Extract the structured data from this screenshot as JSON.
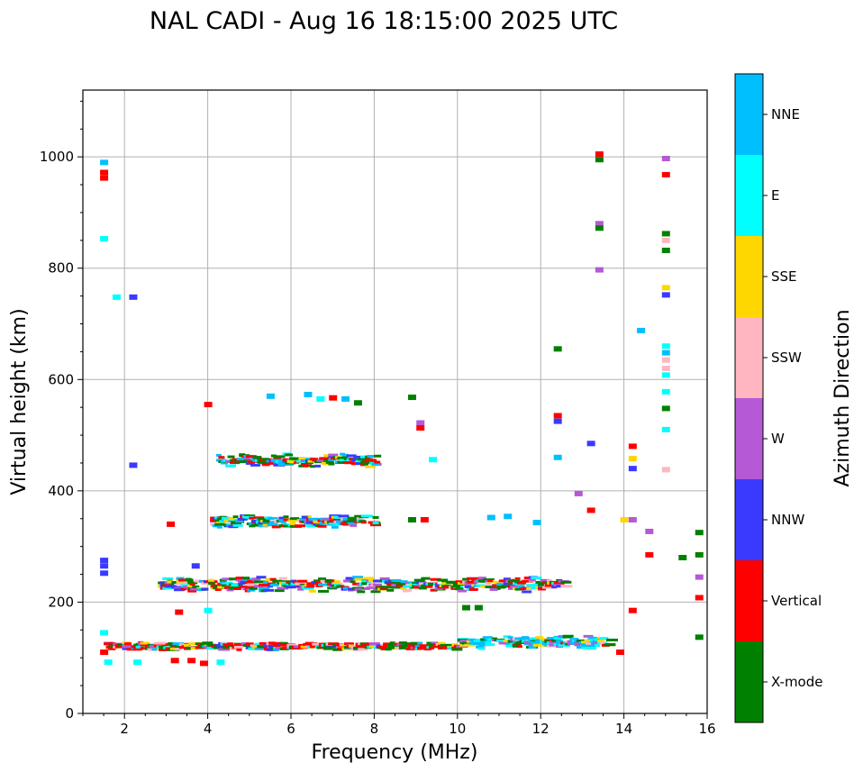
{
  "chart_data": {
    "type": "scatter",
    "title": "NAL CADI - Aug 16 18:15:00 2025 UTC",
    "xlabel": "Frequency (MHz)",
    "ylabel": "Virtual height (km)",
    "xlim": [
      1,
      16
    ],
    "ylim": [
      0,
      1120
    ],
    "xticks": [
      2,
      4,
      6,
      8,
      10,
      12,
      14,
      16
    ],
    "yticks": [
      0,
      200,
      400,
      600,
      800,
      1000
    ],
    "grid": true,
    "colorbar": {
      "label": "Azimuth Direction",
      "categories": [
        {
          "name": "X-mode",
          "color": "#008000"
        },
        {
          "name": "Vertical",
          "color": "#ff0000"
        },
        {
          "name": "NNW",
          "color": "#3a3aff"
        },
        {
          "name": "W",
          "color": "#b659d6"
        },
        {
          "name": "SSW",
          "color": "#ffb6c1"
        },
        {
          "name": "SSE",
          "color": "#ffd700"
        },
        {
          "name": "E",
          "color": "#00ffff"
        },
        {
          "name": "NNE",
          "color": "#00bfff"
        }
      ]
    },
    "echo_layers": [
      {
        "name": "E-layer trace",
        "x": [
          1.5,
          10.0
        ],
        "y": [
          118,
          122
        ]
      },
      {
        "name": "E-layer extension",
        "x": [
          10.0,
          13.6
        ],
        "y": [
          120,
          134
        ]
      },
      {
        "name": "F-layer trace",
        "x": [
          2.8,
          12.5
        ],
        "y": [
          222,
          240
        ]
      },
      {
        "name": "F-layer second hop",
        "x": [
          4.0,
          8.0
        ],
        "y": [
          337,
          352
        ]
      },
      {
        "name": "F-layer third hop",
        "x": [
          4.2,
          8.0
        ],
        "y": [
          447,
          462
        ]
      }
    ],
    "echoes": [
      {
        "x": 1.5,
        "y": 990,
        "dir": "NNE"
      },
      {
        "x": 1.5,
        "y": 972,
        "dir": "Vertical"
      },
      {
        "x": 1.5,
        "y": 962,
        "dir": "Vertical"
      },
      {
        "x": 1.5,
        "y": 853,
        "dir": "E"
      },
      {
        "x": 1.5,
        "y": 275,
        "dir": "NNW"
      },
      {
        "x": 1.5,
        "y": 265,
        "dir": "NNW"
      },
      {
        "x": 1.5,
        "y": 252,
        "dir": "NNW"
      },
      {
        "x": 1.5,
        "y": 145,
        "dir": "E"
      },
      {
        "x": 1.5,
        "y": 110,
        "dir": "Vertical"
      },
      {
        "x": 1.6,
        "y": 92,
        "dir": "E"
      },
      {
        "x": 1.8,
        "y": 748,
        "dir": "E"
      },
      {
        "x": 2.2,
        "y": 748,
        "dir": "NNW"
      },
      {
        "x": 2.2,
        "y": 446,
        "dir": "NNW"
      },
      {
        "x": 2.3,
        "y": 92,
        "dir": "E"
      },
      {
        "x": 3.1,
        "y": 340,
        "dir": "Vertical"
      },
      {
        "x": 3.2,
        "y": 95,
        "dir": "Vertical"
      },
      {
        "x": 3.3,
        "y": 182,
        "dir": "Vertical"
      },
      {
        "x": 3.6,
        "y": 95,
        "dir": "Vertical"
      },
      {
        "x": 3.7,
        "y": 265,
        "dir": "NNW"
      },
      {
        "x": 3.9,
        "y": 90,
        "dir": "Vertical"
      },
      {
        "x": 4.0,
        "y": 555,
        "dir": "Vertical"
      },
      {
        "x": 4.0,
        "y": 185,
        "dir": "E"
      },
      {
        "x": 4.3,
        "y": 92,
        "dir": "E"
      },
      {
        "x": 5.5,
        "y": 570,
        "dir": "NNE"
      },
      {
        "x": 6.4,
        "y": 573,
        "dir": "NNE"
      },
      {
        "x": 6.7,
        "y": 565,
        "dir": "E"
      },
      {
        "x": 7.0,
        "y": 567,
        "dir": "Vertical"
      },
      {
        "x": 7.3,
        "y": 565,
        "dir": "NNE"
      },
      {
        "x": 7.6,
        "y": 558,
        "dir": "X-mode"
      },
      {
        "x": 8.9,
        "y": 568,
        "dir": "X-mode"
      },
      {
        "x": 9.1,
        "y": 522,
        "dir": "W"
      },
      {
        "x": 9.1,
        "y": 513,
        "dir": "Vertical"
      },
      {
        "x": 9.4,
        "y": 456,
        "dir": "E"
      },
      {
        "x": 8.9,
        "y": 348,
        "dir": "X-mode"
      },
      {
        "x": 9.2,
        "y": 348,
        "dir": "Vertical"
      },
      {
        "x": 10.8,
        "y": 352,
        "dir": "NNE"
      },
      {
        "x": 11.2,
        "y": 354,
        "dir": "NNE"
      },
      {
        "x": 11.9,
        "y": 343,
        "dir": "NNE"
      },
      {
        "x": 10.2,
        "y": 190,
        "dir": "X-mode"
      },
      {
        "x": 10.5,
        "y": 190,
        "dir": "X-mode"
      },
      {
        "x": 12.4,
        "y": 655,
        "dir": "X-mode"
      },
      {
        "x": 12.4,
        "y": 535,
        "dir": "Vertical"
      },
      {
        "x": 12.4,
        "y": 525,
        "dir": "NNW"
      },
      {
        "x": 12.4,
        "y": 460,
        "dir": "NNE"
      },
      {
        "x": 13.2,
        "y": 485,
        "dir": "NNW"
      },
      {
        "x": 12.9,
        "y": 395,
        "dir": "W"
      },
      {
        "x": 13.2,
        "y": 365,
        "dir": "Vertical"
      },
      {
        "x": 13.4,
        "y": 1005,
        "dir": "Vertical"
      },
      {
        "x": 13.4,
        "y": 995,
        "dir": "X-mode"
      },
      {
        "x": 13.4,
        "y": 880,
        "dir": "W"
      },
      {
        "x": 13.4,
        "y": 872,
        "dir": "X-mode"
      },
      {
        "x": 13.4,
        "y": 797,
        "dir": "W"
      },
      {
        "x": 14.4,
        "y": 688,
        "dir": "NNE"
      },
      {
        "x": 14.2,
        "y": 480,
        "dir": "Vertical"
      },
      {
        "x": 14.2,
        "y": 458,
        "dir": "SSE"
      },
      {
        "x": 14.2,
        "y": 440,
        "dir": "NNW"
      },
      {
        "x": 14.2,
        "y": 348,
        "dir": "W"
      },
      {
        "x": 14.0,
        "y": 348,
        "dir": "SSE"
      },
      {
        "x": 14.6,
        "y": 327,
        "dir": "W"
      },
      {
        "x": 14.6,
        "y": 285,
        "dir": "Vertical"
      },
      {
        "x": 14.2,
        "y": 185,
        "dir": "Vertical"
      },
      {
        "x": 13.9,
        "y": 110,
        "dir": "Vertical"
      },
      {
        "x": 15.0,
        "y": 997,
        "dir": "W"
      },
      {
        "x": 15.0,
        "y": 968,
        "dir": "Vertical"
      },
      {
        "x": 15.0,
        "y": 862,
        "dir": "X-mode"
      },
      {
        "x": 15.0,
        "y": 850,
        "dir": "SSW"
      },
      {
        "x": 15.0,
        "y": 832,
        "dir": "X-mode"
      },
      {
        "x": 15.0,
        "y": 765,
        "dir": "SSE"
      },
      {
        "x": 15.0,
        "y": 752,
        "dir": "NNW"
      },
      {
        "x": 15.0,
        "y": 660,
        "dir": "E"
      },
      {
        "x": 15.0,
        "y": 648,
        "dir": "NNE"
      },
      {
        "x": 15.0,
        "y": 635,
        "dir": "SSW"
      },
      {
        "x": 15.0,
        "y": 620,
        "dir": "SSW"
      },
      {
        "x": 15.0,
        "y": 608,
        "dir": "E"
      },
      {
        "x": 15.0,
        "y": 578,
        "dir": "E"
      },
      {
        "x": 15.0,
        "y": 548,
        "dir": "X-mode"
      },
      {
        "x": 15.0,
        "y": 510,
        "dir": "E"
      },
      {
        "x": 15.0,
        "y": 438,
        "dir": "SSW"
      },
      {
        "x": 15.4,
        "y": 280,
        "dir": "X-mode"
      },
      {
        "x": 15.8,
        "y": 325,
        "dir": "X-mode"
      },
      {
        "x": 15.8,
        "y": 285,
        "dir": "X-mode"
      },
      {
        "x": 15.8,
        "y": 245,
        "dir": "W"
      },
      {
        "x": 15.8,
        "y": 208,
        "dir": "Vertical"
      },
      {
        "x": 15.8,
        "y": 137,
        "dir": "X-mode"
      }
    ]
  }
}
